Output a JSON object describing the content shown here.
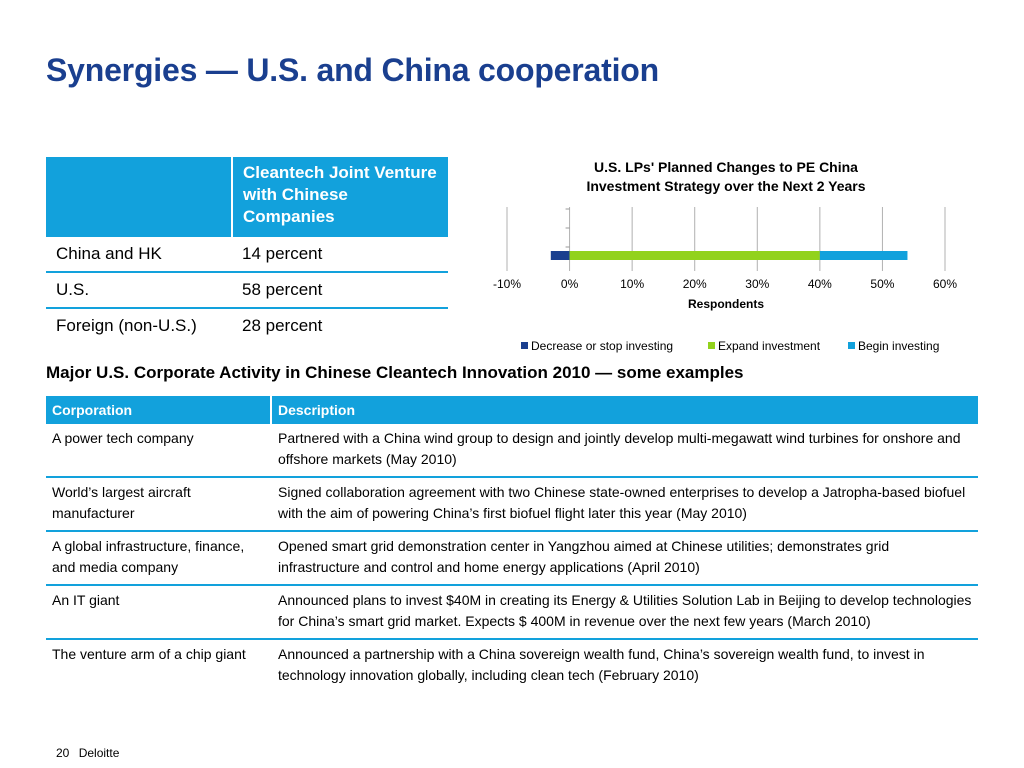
{
  "title": "Synergies — U.S. and China cooperation",
  "jv_table": {
    "header": [
      "",
      "Cleantech Joint Venture with Chinese Companies"
    ],
    "rows": [
      {
        "region": "China and HK",
        "value": "14 percent"
      },
      {
        "region": "U.S.",
        "value": "58 percent"
      },
      {
        "region": "Foreign (non-U.S.)",
        "value": "28 percent"
      }
    ]
  },
  "chart_data": {
    "type": "bar",
    "orientation": "horizontal",
    "stacked": true,
    "title": "U.S. LPs' Planned Changes to PE China Investment Strategy over the Next 2 Years",
    "title_lines": [
      "U.S. LPs' Planned Changes to PE China",
      "Investment Strategy over the Next 2 Years"
    ],
    "xlabel": "Respondents",
    "xlim": [
      -10,
      60
    ],
    "tick_labels": [
      "-10%",
      "0%",
      "10%",
      "20%",
      "30%",
      "40%",
      "50%",
      "60%"
    ],
    "tick_values": [
      -10,
      0,
      10,
      20,
      30,
      40,
      50,
      60
    ],
    "series": [
      {
        "name": "Decrease or stop investing",
        "value": -3,
        "color": "#1a3f8f"
      },
      {
        "name": "Expand investment",
        "value": 40,
        "color": "#92d21c"
      },
      {
        "name": "Begin investing",
        "value": 14,
        "color": "#12a1dc"
      }
    ],
    "grid": true,
    "legend_position": "bottom"
  },
  "activity": {
    "heading": "Major U.S. Corporate Activity in Chinese Cleantech Innovation 2010 — some examples",
    "columns": [
      "Corporation",
      "Description"
    ],
    "rows": [
      {
        "corp": "A  power tech company",
        "desc": "Partnered with a China wind group to design and jointly develop multi-megawatt wind turbines for onshore and offshore markets (May 2010)"
      },
      {
        "corp": "World’s largest aircraft manufacturer",
        "desc": "Signed collaboration agreement with two Chinese state-owned enterprises to develop a Jatropha-based biofuel with the aim of powering China’s first biofuel flight later this year (May 2010)"
      },
      {
        "corp": "A global infrastructure, finance, and media company",
        "desc": "Opened smart grid demonstration center in Yangzhou aimed at Chinese utilities; demonstrates grid infrastructure and control and home energy applications (April 2010)"
      },
      {
        "corp": "An IT giant",
        "desc": "Announced plans to invest $40M in creating its Energy & Utilities Solution Lab in Beijing to develop technologies for China’s smart grid market. Expects $ 400M in revenue over the next few years (March 2010)"
      },
      {
        "corp": "The venture arm of a chip giant",
        "desc": "Announced a partnership with a China sovereign wealth fund, China’s sovereign wealth fund, to invest in technology innovation globally, including clean tech (February 2010)"
      }
    ]
  },
  "footer": {
    "page": "20",
    "brand": "Deloitte"
  }
}
